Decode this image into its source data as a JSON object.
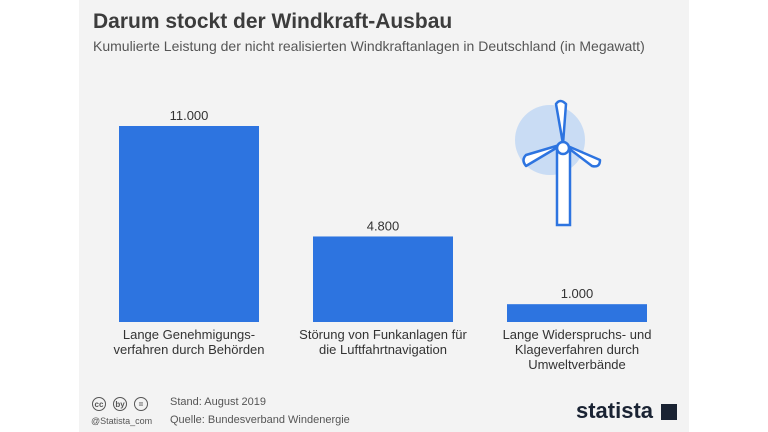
{
  "header": {
    "title": "Darum stockt der Windkraft-Ausbau",
    "subtitle": "Kumulierte Leistung der nicht realisierten Windkraftanlagen in Deutschland (in Megawatt)"
  },
  "chart_data": {
    "type": "bar",
    "categories": [
      "Lange Genehmigungs- verfahren durch Behörden",
      "Störung von Funkanlagen für die Luftfahrtnavigation",
      "Lange Widerspruchs- und Klageverfahren durch Umweltverbände"
    ],
    "category_lines": [
      [
        "Lange Genehmigungs-",
        "verfahren durch Behörden"
      ],
      [
        "Störung von Funkanlagen für",
        "die Luftfahrtnavigation"
      ],
      [
        "Lange Widerspruchs- und",
        "Klageverfahren durch",
        "Umweltverbände"
      ]
    ],
    "values": [
      11000,
      4800,
      1000
    ],
    "value_labels": [
      "11.000",
      "4.800",
      "1.000"
    ],
    "ylim": [
      0,
      11000
    ],
    "grid": false,
    "bar_color": "#2d74e0"
  },
  "footer": {
    "stand": "Stand: August 2019",
    "quelle": "Quelle: Bundesverband Windenergie",
    "handle": "@Statista_com",
    "brand": "statista",
    "cc_icons": [
      "cc",
      "by",
      "="
    ]
  },
  "icons": {
    "decoration": "wind-turbine-icon",
    "turbine_color": "#2d74e0",
    "turbine_bg": "#c9dcf4"
  }
}
